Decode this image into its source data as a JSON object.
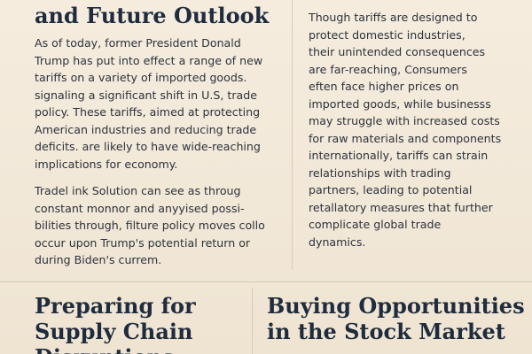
{
  "left_column": {
    "heading_lines": [
      "and Future Outlook"
    ],
    "paragraph1_lines": [
      "As of today, former President Donald",
      "Trump has put into effect a range of new",
      "tariffs on a variety of imported goods.",
      "signaling a significant shift in U.S, trade",
      "policy. These tariffs, aimed at protecting",
      "American industries and reducing trade",
      "deficits. are likely to have wide-reaching",
      "implications for economy."
    ],
    "paragraph2_lines": [
      "Tradel ink Solution can see as throug",
      "constant monnor and anyyised possi-",
      "bilities through, filture policy moves collo",
      "occur upon Trump's potential return or",
      "during Biden's currem."
    ]
  },
  "right_column": {
    "paragraph_lines": [
      "Though tariffs are designed to",
      "protect domestic industries,",
      "their unintended consequences",
      "are far-reaching, Consumers",
      "eften face higher prices on",
      "imported goods, while businesss",
      "may struggle with increased costs",
      "for raw materials and components",
      "internationally, tariffs can strain",
      "relationships with trading",
      "partners, leading to potential",
      "retallatory measures that further",
      "complicate global trade",
      "dynamics."
    ]
  },
  "bottom_left": {
    "heading_lines": [
      "Preparing for",
      "Supply Chain",
      "Disruptions"
    ]
  },
  "bottom_right": {
    "heading_lines": [
      "Buying Opportunities",
      "in the Stock Market"
    ]
  },
  "colors": {
    "background": "#f3eadb",
    "heading": "#1f2c3d",
    "body_text": "#2b323c",
    "rule": "#d6c8b1"
  }
}
